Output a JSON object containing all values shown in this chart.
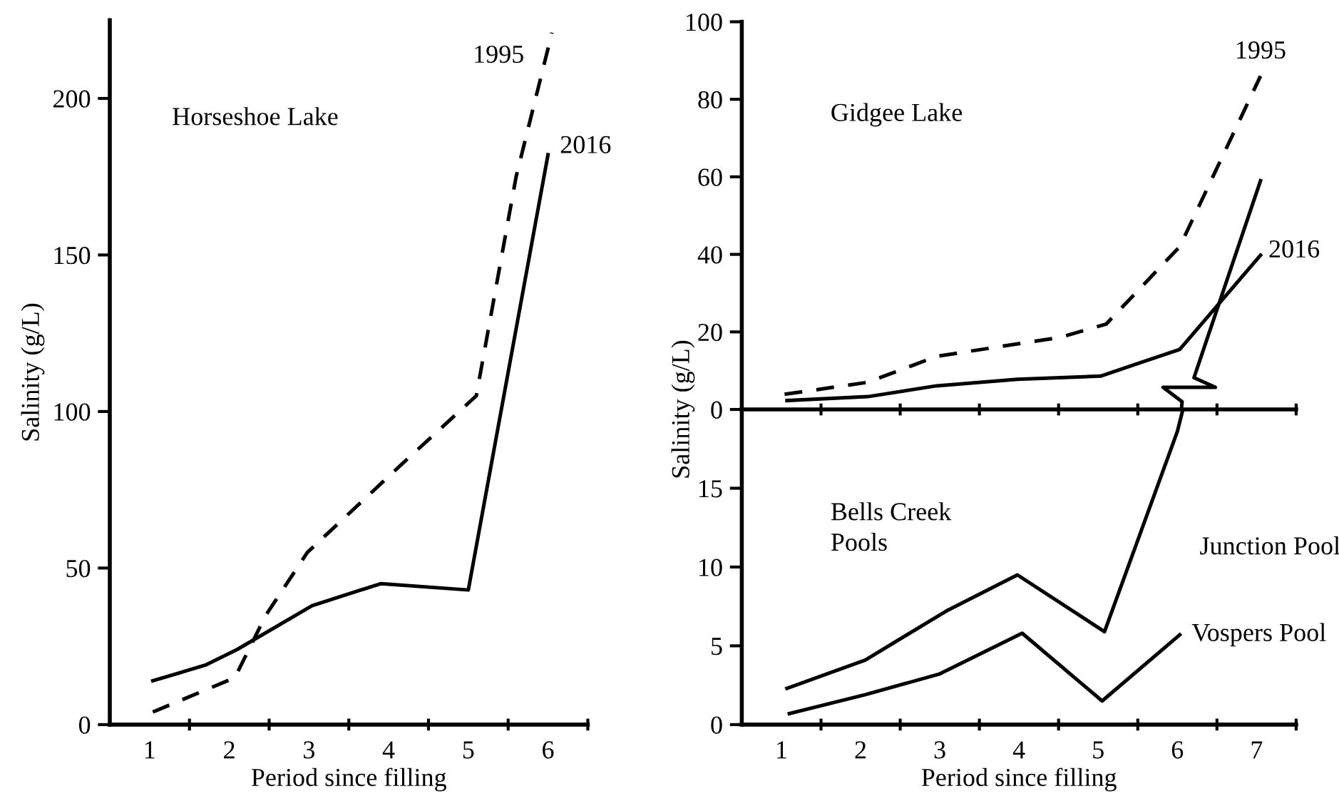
{
  "chart_data": [
    {
      "type": "line",
      "title": "Horseshoe Lake",
      "xlabel": "Period since filling",
      "ylabel": "Salinity (g/L)",
      "xlim": [
        0.5,
        6.5
      ],
      "ylim": [
        0,
        225
      ],
      "xticks": [
        1,
        2,
        3,
        4,
        5,
        6,
        {
          "value": 1.5,
          "label": null
        },
        {
          "value": 2.5,
          "label": null
        },
        {
          "value": 3.5,
          "label": null
        },
        {
          "value": 4.5,
          "label": null
        },
        {
          "value": 5.5,
          "label": null
        },
        {
          "value": 6.5,
          "label": null
        }
      ],
      "yticks": [
        0,
        50,
        100,
        150,
        200
      ],
      "grid": false,
      "legend": false,
      "series": [
        {
          "name": "1995",
          "color": "#000000",
          "line_style": "dashed",
          "x": [
            1.04,
            2.07,
            2.46,
            2.98,
            4.2,
            5.1,
            5.6,
            6.05
          ],
          "values": [
            4,
            15,
            35,
            55,
            84,
            105,
            175,
            221
          ]
        },
        {
          "name": "2016",
          "color": "#000000",
          "line_style": "solid",
          "x": [
            1.04,
            1.7,
            2.1,
            3.04,
            3.9,
            5.0,
            6.0
          ],
          "values": [
            14,
            19,
            24,
            38,
            45,
            43,
            182
          ]
        }
      ]
    },
    {
      "type": "line",
      "title": "Gidgee Lake",
      "xlim": [
        0.5,
        7.5
      ],
      "ylim": [
        0,
        100
      ],
      "tick_labels": "y",
      "xticks": [
        {
          "value": 1.5,
          "label": null
        },
        {
          "value": 2.5,
          "label": null
        },
        {
          "value": 3.5,
          "label": null
        },
        {
          "value": 4.5,
          "label": null
        },
        {
          "value": 5.5,
          "label": null
        },
        {
          "value": 6.5,
          "label": null
        },
        {
          "value": 7.5,
          "label": null
        }
      ],
      "yticks": [
        0,
        20,
        40,
        60,
        80,
        100
      ],
      "grid": false,
      "legend": false,
      "series": [
        {
          "name": "1995",
          "color": "#000000",
          "line_style": "dashed",
          "x": [
            1.04,
            2.09,
            2.96,
            4.52,
            5.1,
            6.03,
            7.05
          ],
          "values": [
            3.9,
            7,
            13.7,
            18.6,
            22,
            42,
            86
          ]
        },
        {
          "name": "2016",
          "color": "#000000",
          "line_style": "solid",
          "x": [
            1.07,
            2.09,
            2.96,
            3.98,
            5.03,
            6.03,
            7.05
          ],
          "values": [
            2.3,
            3.3,
            6.1,
            7.8,
            8.6,
            15.5,
            39.8
          ]
        },
        {
          "color": "#000000",
          "line_style": "solid",
          "x": [
            6.05,
            6.06,
            5.82,
            6.48,
            6.21,
            7.05
          ],
          "values": [
            0,
            2,
            5.7,
            5.7,
            8.2,
            59
          ]
        }
      ]
    },
    {
      "type": "line",
      "title": "Bells Creek\nPools",
      "xlabel": "Period since filling",
      "ylabel": "Salinity (g/L)",
      "xlim": [
        0.5,
        7.5
      ],
      "ylim": [
        0,
        20
      ],
      "xticks": [
        1,
        2,
        3,
        4,
        5,
        6,
        7,
        {
          "value": 1.5,
          "label": null
        },
        {
          "value": 2.5,
          "label": null
        },
        {
          "value": 3.5,
          "label": null
        },
        {
          "value": 4.5,
          "label": null
        },
        {
          "value": 5.5,
          "label": null
        },
        {
          "value": 6.5,
          "label": null
        },
        {
          "value": 7.5,
          "label": null
        }
      ],
      "yticks": [
        0,
        5,
        10,
        15
      ],
      "grid": false,
      "legend": false,
      "series": [
        {
          "name": "Junction Pool",
          "color": "#000000",
          "line_style": "solid",
          "x": [
            1.07,
            2.06,
            3.08,
            3.98,
            5.08,
            6.0,
            6.07
          ],
          "values": [
            2.3,
            4.1,
            7.2,
            9.5,
            5.9,
            18.6,
            20
          ]
        },
        {
          "name": "Vospers Pool",
          "color": "#000000",
          "line_style": "solid",
          "x": [
            1.1,
            2.06,
            2.99,
            4.04,
            5.05,
            6.03
          ],
          "values": [
            0.7,
            1.9,
            3.2,
            5.8,
            1.5,
            5.7
          ]
        }
      ]
    }
  ]
}
